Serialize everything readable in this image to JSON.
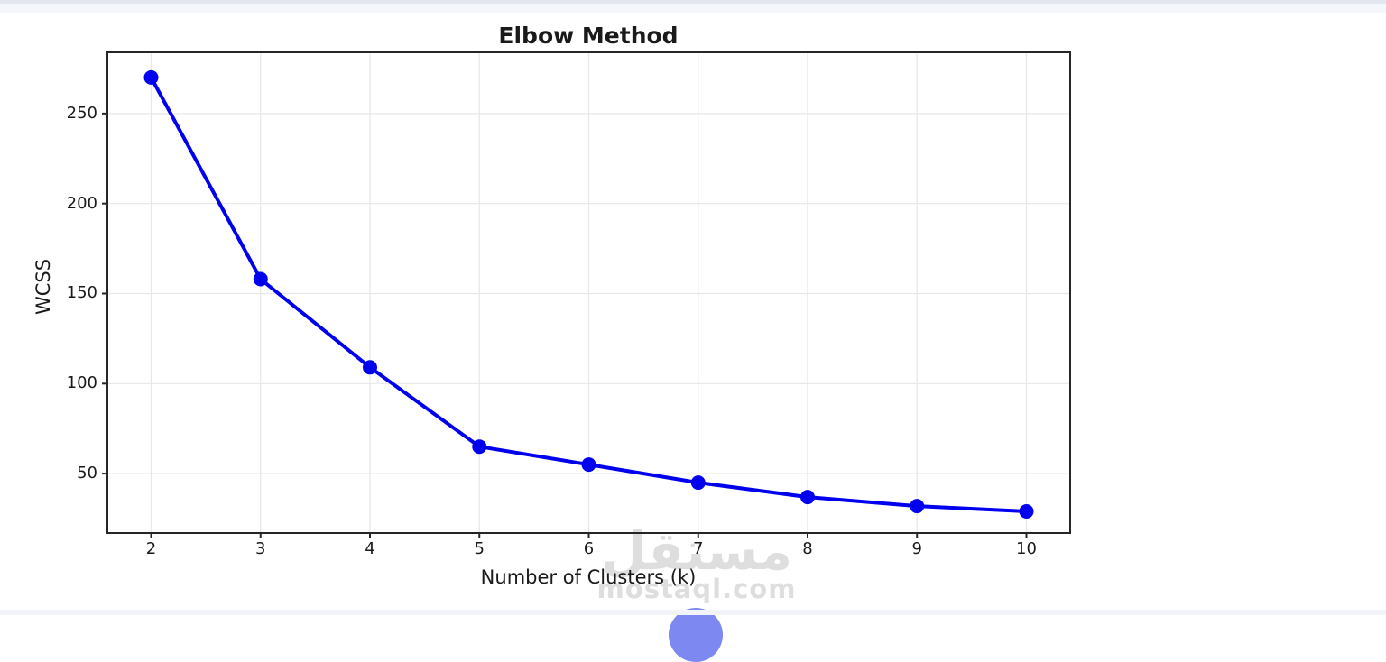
{
  "page": {
    "background": "#ffffff",
    "top_band_outer_color": "#e3e5ef",
    "top_band_inner_color": "#f4f6fb",
    "bottom_band_color": "#f3f4fa",
    "floating_button_color": "#7d88f0"
  },
  "watermark": {
    "logo_text": "مستقل",
    "site_text": "mostaql.com",
    "color": "#dedede"
  },
  "chart_data": {
    "type": "line",
    "title": "Elbow Method",
    "xlabel": "Number of Clusters (k)",
    "ylabel": "WCSS",
    "x": [
      2,
      3,
      4,
      5,
      6,
      7,
      8,
      9,
      10
    ],
    "values": [
      270,
      158,
      109,
      65,
      55,
      45,
      37,
      32,
      29
    ],
    "x_tick_labels": [
      "2",
      "3",
      "4",
      "5",
      "6",
      "7",
      "8",
      "9",
      "10"
    ],
    "y_tick_labels": [
      "50",
      "100",
      "150",
      "200",
      "250"
    ],
    "y_tick_values": [
      50,
      100,
      150,
      200,
      250
    ],
    "xlim": [
      1.6,
      10.4
    ],
    "ylim": [
      17,
      284
    ],
    "grid": true,
    "legend_position": "none",
    "line_color": "#0000ee",
    "marker": "circle",
    "axis_color": "#262626",
    "grid_color": "#e7e7e7",
    "text_color": "#1a1a1a"
  }
}
